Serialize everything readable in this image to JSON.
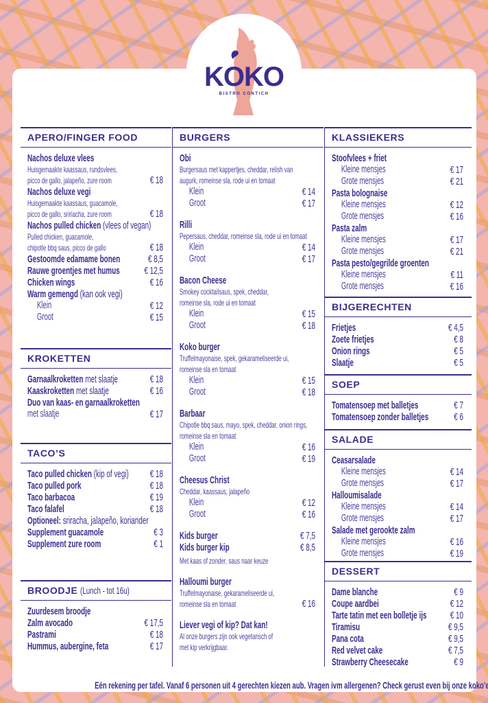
{
  "logo": {
    "name": "KOKO",
    "subtitle": "BISTRO CONTICH"
  },
  "colors": {
    "ink": "#3a2d8f",
    "logo_bird": "#eea59a",
    "background": "#f3b5ae"
  },
  "columns": [
    [
      {
        "title": "APERO/FINGER FOOD",
        "items": [
          {
            "name": "Nachos deluxe vlees",
            "desc": [
              "Huisgemaakte kaassaus, rundsvlees,",
              "picco de gallo, jalapeño, zure room"
            ],
            "price": "€ 18"
          },
          {
            "name": "Nachos deluxe vegi",
            "desc": [
              "Huisgemaakte kaassaus, guacamole,",
              "picco de gallo, sririacha, zure room"
            ],
            "price": "€ 18"
          },
          {
            "name": "Nachos pulled chicken",
            "note": "(vlees of vegan)",
            "desc": [
              "Pulled chicken, guacamole,",
              "chipotle bbq saus, picco de gallo"
            ],
            "price": "€ 18"
          },
          {
            "name": "Gestoomde edamame bonen",
            "price": "€ 8,5"
          },
          {
            "name": "Rauwe groentjes met humus",
            "price": "€ 12,5"
          },
          {
            "name": "Chicken wings",
            "price": "€ 16"
          },
          {
            "name": "Warm gemengd",
            "note": "(kan ook vegi)",
            "sizes": [
              {
                "label": "Klein",
                "price": "€ 12"
              },
              {
                "label": "Groot",
                "price": "€ 15"
              }
            ]
          }
        ]
      },
      {
        "title": "KROKETTEN",
        "items": [
          {
            "name": "Garnaalkroketten",
            "note": "met slaatje",
            "price": "€ 18"
          },
          {
            "name": "Kaaskroketten",
            "note": "met slaatje",
            "price": "€ 16"
          },
          {
            "name": "Duo van kaas- en garnaalkroketten",
            "sub": "met slaatje",
            "price": "€ 17"
          }
        ]
      },
      {
        "title": "TACO’S",
        "items": [
          {
            "name": "Taco pulled chicken",
            "note": "(kip of vegi)",
            "price": "€ 18"
          },
          {
            "name": "Taco pulled pork",
            "price": "€ 18"
          },
          {
            "name": "Taco barbacoa",
            "price": "€ 19"
          },
          {
            "name": "Taco falafel",
            "price": "€ 18"
          },
          {
            "name": "Optioneel:",
            "note": "sriracha, jalapeño, koriander"
          },
          {
            "name": "Supplement guacamole",
            "price": "€ 3"
          },
          {
            "name": "Supplement zure room",
            "price": "€ 1"
          }
        ]
      },
      {
        "title": "BROODJE",
        "title_note": "(Lunch - tot 16u)",
        "items": [
          {
            "name": "Zuurdesem broodje"
          },
          {
            "name": "Zalm avocado",
            "price": "€ 17,5"
          },
          {
            "name": "Pastrami",
            "price": "€ 18"
          },
          {
            "name": "Hummus, aubergine, feta",
            "price": "€ 17"
          }
        ]
      }
    ],
    [
      {
        "title": "BURGERS",
        "items": [
          {
            "name": "Obi",
            "desc": [
              "Burgersaus met kappertjes, cheddar, relish van",
              "augurk, romeinse sla, rode ui en tomaat"
            ],
            "sizes": [
              {
                "label": "Klein",
                "price": "€ 14"
              },
              {
                "label": "Groot",
                "price": "€ 17"
              }
            ]
          },
          {
            "name": "Rilli",
            "desc": [
              "Pepersaus, cheddar, romeinse sla, rode ui en tomaat"
            ],
            "sizes": [
              {
                "label": "Klein",
                "price": "€ 14"
              },
              {
                "label": "Groot",
                "price": "€ 17"
              }
            ]
          },
          {
            "name": "Bacon Cheese",
            "desc": [
              "Smokey cocktailsaus, spek, cheddar,",
              "romeinse sla, rode ui en tomaat"
            ],
            "sizes": [
              {
                "label": "Klein",
                "price": "€ 15"
              },
              {
                "label": "Groot",
                "price": "€ 18"
              }
            ]
          },
          {
            "name": "Koko burger",
            "desc": [
              "Truffelmayonaise, spek, gekarameliseerde ui,",
              "romeinse sla en tomaat"
            ],
            "sizes": [
              {
                "label": "Klein",
                "price": "€ 15"
              },
              {
                "label": "Groot",
                "price": "€ 18"
              }
            ]
          },
          {
            "name": "Barbaar",
            "desc": [
              "Chipotle bbq saus, mayo, spek, cheddar, onion rings,",
              "romeinse sla en tomaat"
            ],
            "sizes": [
              {
                "label": "Klein",
                "price": "€ 16"
              },
              {
                "label": "Groot",
                "price": "€ 19"
              }
            ]
          },
          {
            "name": "Cheesus Christ",
            "desc": [
              "Cheddar, kaassaus, jalapeño"
            ],
            "sizes": [
              {
                "label": "Klein",
                "price": "€ 12"
              },
              {
                "label": "Groot",
                "price": "€ 16"
              }
            ]
          },
          {
            "name": "Kids burger",
            "price": "€ 7,5"
          },
          {
            "name": "Kids burger kip",
            "price": "€ 8,5",
            "after": "Met kaas of zonder, saus naar keuze"
          },
          {
            "name": "Halloumi burger",
            "desc": [
              "Truffelmayonaise, gekarameliseerde ui,",
              "romeinse sla en tomaat"
            ],
            "price": "€ 16"
          },
          {
            "name": "Liever vegi of kip? Dat kan!",
            "desc": [
              "Al onze burgers zijn ook vegetarisch of",
              "met kip verkrijgbaar."
            ]
          }
        ]
      }
    ],
    [
      {
        "title": "KLASSIEKERS",
        "items": [
          {
            "name": "Stoofvlees + friet",
            "sizes": [
              {
                "label": "Kleine mensjes",
                "price": "€ 17"
              },
              {
                "label": "Grote mensjes",
                "price": "€ 21"
              }
            ]
          },
          {
            "name": "Pasta bolognaise",
            "sizes": [
              {
                "label": "Kleine mensjes",
                "price": "€ 12"
              },
              {
                "label": "Grote mensjes",
                "price": "€ 16"
              }
            ]
          },
          {
            "name": "Pasta zalm",
            "sizes": [
              {
                "label": "Kleine mensjes",
                "price": "€ 17"
              },
              {
                "label": "Grote mensjes",
                "price": "€ 21"
              }
            ]
          },
          {
            "name": "Pasta pesto/gegrilde groenten",
            "sizes": [
              {
                "label": "Kleine mensjes",
                "price": "€ 11"
              },
              {
                "label": "Grote mensjes",
                "price": "€ 16"
              }
            ]
          }
        ]
      },
      {
        "title": "BIJGERECHTEN",
        "items": [
          {
            "name": "Frietjes",
            "price": "€ 4,5"
          },
          {
            "name": "Zoete frietjes",
            "price": "€ 8"
          },
          {
            "name": "Onion rings",
            "price": "€ 5"
          },
          {
            "name": "Slaatje",
            "price": "€ 5"
          }
        ]
      },
      {
        "title": "SOEP",
        "items": [
          {
            "name": "Tomatensoep met balletjes",
            "price": "€ 7"
          },
          {
            "name": "Tomatensoep zonder balletjes",
            "price": "€ 6"
          }
        ]
      },
      {
        "title": "SALADE",
        "items": [
          {
            "name": "Ceasarsalade",
            "sizes": [
              {
                "label": "Kleine mensjes",
                "price": "€ 14"
              },
              {
                "label": "Grote mensjes",
                "price": "€ 17"
              }
            ]
          },
          {
            "name": "Halloumisalade",
            "sizes": [
              {
                "label": "Kleine mensjes",
                "price": "€ 14"
              },
              {
                "label": "Grote mensjes",
                "price": "€ 17"
              }
            ]
          },
          {
            "name": "Salade met gerookte zalm",
            "sizes": [
              {
                "label": "Kleine mensjes",
                "price": "€ 16"
              },
              {
                "label": "Grote mensjes",
                "price": "€ 19"
              }
            ]
          }
        ]
      },
      {
        "title": "DESSERT",
        "items": [
          {
            "name": "Dame blanche",
            "price": "€ 9"
          },
          {
            "name": "Coupe aardbei",
            "price": "€ 12"
          },
          {
            "name": "Tarte tatin met een bolletje ijs",
            "price": "€ 10"
          },
          {
            "name": "Tiramisu",
            "price": "€ 9,5"
          },
          {
            "name": "Pana cota",
            "price": "€ 9,5"
          },
          {
            "name": "Red velvet cake",
            "price": "€ 7,5"
          },
          {
            "name": "Strawberry Cheesecake",
            "price": "€ 9"
          }
        ]
      }
    ]
  ],
  "footer": "Eén rekening per tafel. Vanaf 6 personen uit 4 gerechten kiezen aub. Vragen ivm allergenen? Check gerust even bij onze koko’ers."
}
